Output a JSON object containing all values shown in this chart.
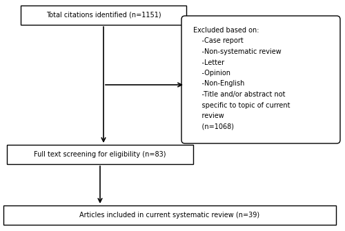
{
  "box1_text": "Total citations identified (n=1151)",
  "box2_text": "Full text screening for eligibility (n=83)",
  "box3_text": "Articles included in current systematic review (n=39)",
  "excl_lines": [
    "Excluded based on:",
    "    -Case report",
    "    -Non-systematic review",
    "    -Letter",
    "    -Opinion",
    "    -Non-English",
    "    -Title and/or abstract not",
    "    specific to topic of current",
    "    review",
    "    (n=1068)"
  ],
  "box_edge": "#000000",
  "arrow_color": "#000000",
  "bg_color": "#ffffff",
  "font_size": 7.0,
  "excl_font_size": 7.0
}
